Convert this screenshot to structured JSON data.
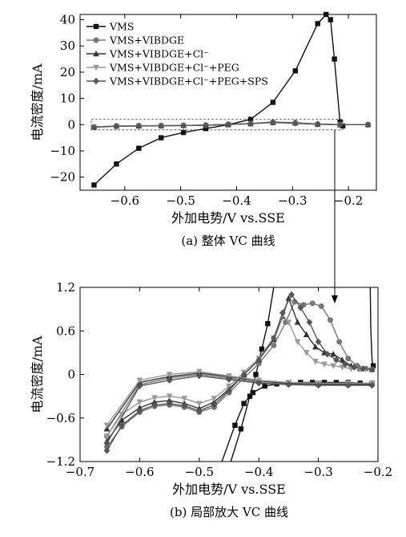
{
  "chart_data": [
    {
      "type": "line",
      "caption": "(a) 整体 VC 曲线",
      "xlabel": "外加电势/V vs.SSE",
      "ylabel": "电流密度/mA",
      "xlim": [
        -0.68,
        -0.15
      ],
      "ylim": [
        -25,
        42
      ],
      "xticks": [
        "-0.6",
        "-0.5",
        "-0.4",
        "-0.3",
        "-0.2"
      ],
      "yticks": [
        "-20",
        "-10",
        "0",
        "10",
        "20",
        "30",
        "40"
      ],
      "xtick_values": [
        -0.6,
        -0.5,
        -0.4,
        -0.3,
        -0.2
      ],
      "ytick_values": [
        -20,
        -10,
        0,
        10,
        20,
        30,
        40
      ],
      "legend_position": "top-left",
      "zoom_box": {
        "x": [
          -0.66,
          -0.21
        ],
        "y": [
          -2,
          2
        ]
      },
      "series": [
        {
          "name": "VMS",
          "marker": "square",
          "x": [
            -0.655,
            -0.615,
            -0.575,
            -0.535,
            -0.495,
            -0.455,
            -0.415,
            -0.375,
            -0.335,
            -0.295,
            -0.255,
            -0.24,
            -0.232,
            -0.225,
            -0.215,
            -0.21
          ],
          "y": [
            -23,
            -15,
            -9,
            -5,
            -3,
            -1.5,
            0,
            2,
            8.5,
            20.5,
            38.5,
            42,
            40,
            25,
            1,
            -0.5
          ]
        },
        {
          "name": "VMS+VIBDGE",
          "marker": "circle",
          "x": [
            -0.655,
            -0.615,
            -0.575,
            -0.535,
            -0.495,
            -0.455,
            -0.415,
            -0.375,
            -0.335,
            -0.295,
            -0.255,
            -0.215,
            -0.165
          ],
          "y": [
            -0.9,
            -0.6,
            -0.5,
            -0.4,
            -0.3,
            -0.2,
            0.1,
            0.3,
            0.9,
            0.8,
            0.2,
            0.0,
            0.0
          ]
        },
        {
          "name": "VMS+VIBDGE+Cl⁻",
          "marker": "triangle-up",
          "x": [
            -0.655,
            -0.615,
            -0.575,
            -0.535,
            -0.495,
            -0.455,
            -0.415,
            -0.375,
            -0.335,
            -0.295,
            -0.255,
            -0.215,
            -0.165
          ],
          "y": [
            -0.9,
            -0.5,
            -0.45,
            -0.4,
            -0.3,
            -0.2,
            0.1,
            0.4,
            0.8,
            0.6,
            0.2,
            0.0,
            0.0
          ]
        },
        {
          "name": "VMS+VIBDGE+Cl⁻+PEG",
          "marker": "triangle-down",
          "x": [
            -0.655,
            -0.615,
            -0.575,
            -0.535,
            -0.495,
            -0.455,
            -0.415,
            -0.375,
            -0.335,
            -0.295,
            -0.255,
            -0.215,
            -0.165
          ],
          "y": [
            -0.8,
            -0.5,
            -0.4,
            -0.35,
            -0.3,
            -0.2,
            0.1,
            0.4,
            0.7,
            0.4,
            0.1,
            0.0,
            0.0
          ]
        },
        {
          "name": "VMS+VIBDGE+Cl⁻+PEG+SPS",
          "marker": "diamond",
          "x": [
            -0.655,
            -0.615,
            -0.575,
            -0.535,
            -0.495,
            -0.455,
            -0.415,
            -0.375,
            -0.335,
            -0.295,
            -0.255,
            -0.215,
            -0.165
          ],
          "y": [
            -1.0,
            -0.6,
            -0.5,
            -0.45,
            -0.35,
            -0.25,
            0.1,
            0.4,
            1.0,
            0.6,
            0.2,
            0.0,
            0.0
          ]
        }
      ]
    },
    {
      "type": "line",
      "caption": "(b) 局部放大 VC 曲线",
      "xlabel": "外加电势/V vs.SSE",
      "ylabel": "电流密度/mA",
      "xlim": [
        -0.7,
        -0.2
      ],
      "ylim": [
        -1.2,
        1.2
      ],
      "xticks": [
        "-0.7",
        "-0.6",
        "-0.5",
        "-0.4",
        "-0.3",
        "-0.2"
      ],
      "yticks": [
        "-1.2",
        "-0.6",
        "0",
        "0.6",
        "1.2"
      ],
      "xtick_values": [
        -0.7,
        -0.6,
        -0.5,
        -0.4,
        -0.3,
        -0.2
      ],
      "ytick_values": [
        -1.2,
        -0.6,
        0,
        0.6,
        1.2
      ],
      "series": [
        {
          "name": "VMS",
          "marker": "square",
          "x": [
            -0.447,
            -0.43,
            -0.415,
            -0.405,
            -0.395,
            -0.385,
            -0.375
          ],
          "y": [
            -1.2,
            -0.75,
            -0.3,
            0.0,
            0.35,
            0.7,
            1.2
          ],
          "x2": [
            -0.462,
            -0.44,
            -0.425,
            -0.41,
            -0.39,
            -0.37,
            -0.35,
            -0.33,
            -0.31,
            -0.29,
            -0.27,
            -0.25,
            -0.23,
            -0.21
          ],
          "y2": [
            -1.2,
            -0.7,
            -0.4,
            -0.25,
            -0.16,
            -0.13,
            -0.12,
            -0.11,
            -0.11,
            -0.11,
            -0.11,
            -0.11,
            -0.12,
            -0.12
          ],
          "x3": [
            -0.213,
            -0.212,
            -0.21,
            -0.208
          ],
          "y3": [
            1.2,
            0.6,
            0.2,
            0.12
          ]
        },
        {
          "name": "VMS+VIBDGE",
          "marker": "circle",
          "x": [
            -0.655,
            -0.63,
            -0.6,
            -0.575,
            -0.55,
            -0.525,
            -0.5,
            -0.475,
            -0.45,
            -0.425,
            -0.4,
            -0.375,
            -0.355,
            -0.34,
            -0.325,
            -0.31,
            -0.295,
            -0.28,
            -0.265,
            -0.25,
            -0.235,
            -0.22,
            -0.21
          ],
          "y": [
            -1.0,
            -0.72,
            -0.52,
            -0.44,
            -0.42,
            -0.45,
            -0.52,
            -0.45,
            -0.25,
            -0.05,
            0.15,
            0.4,
            0.72,
            1.0,
            0.96,
            0.98,
            0.94,
            0.75,
            0.45,
            0.22,
            0.12,
            0.08,
            0.07
          ],
          "rx": [
            -0.21,
            -0.25,
            -0.3,
            -0.35,
            -0.4,
            -0.45,
            -0.5,
            -0.55,
            -0.6,
            -0.655
          ],
          "ry": [
            -0.14,
            -0.14,
            -0.14,
            -0.13,
            -0.11,
            -0.05,
            0.0,
            -0.05,
            -0.14,
            -0.85
          ]
        },
        {
          "name": "VMS+VIBDGE+Cl⁻",
          "marker": "triangle-up",
          "x": [
            -0.655,
            -0.63,
            -0.6,
            -0.575,
            -0.55,
            -0.525,
            -0.5,
            -0.475,
            -0.45,
            -0.425,
            -0.4,
            -0.375,
            -0.36,
            -0.35,
            -0.335,
            -0.32,
            -0.305,
            -0.29,
            -0.275,
            -0.26,
            -0.245,
            -0.23,
            -0.21
          ],
          "y": [
            -0.92,
            -0.63,
            -0.46,
            -0.38,
            -0.36,
            -0.4,
            -0.47,
            -0.38,
            -0.2,
            0.0,
            0.2,
            0.48,
            0.8,
            1.05,
            0.72,
            0.55,
            0.38,
            0.3,
            0.28,
            0.2,
            0.12,
            0.08,
            0.07
          ],
          "rx": [
            -0.21,
            -0.25,
            -0.3,
            -0.35,
            -0.4,
            -0.45,
            -0.5,
            -0.55,
            -0.6,
            -0.655
          ],
          "ry": [
            -0.13,
            -0.13,
            -0.13,
            -0.12,
            -0.09,
            -0.03,
            0.02,
            -0.03,
            -0.11,
            -0.75
          ]
        },
        {
          "name": "VMS+VIBDGE+Cl⁻+PEG",
          "marker": "triangle-down",
          "x": [
            -0.655,
            -0.63,
            -0.6,
            -0.575,
            -0.55,
            -0.525,
            -0.5,
            -0.475,
            -0.45,
            -0.425,
            -0.4,
            -0.375,
            -0.36,
            -0.35,
            -0.335,
            -0.32,
            -0.305,
            -0.29,
            -0.275,
            -0.26,
            -0.245,
            -0.23,
            -0.21
          ],
          "y": [
            -0.85,
            -0.55,
            -0.38,
            -0.32,
            -0.3,
            -0.33,
            -0.4,
            -0.33,
            -0.16,
            0.03,
            0.22,
            0.5,
            0.82,
            0.72,
            0.45,
            0.3,
            0.18,
            0.14,
            0.12,
            0.1,
            0.08,
            0.07,
            0.06
          ],
          "rx": [
            -0.21,
            -0.25,
            -0.3,
            -0.35,
            -0.4,
            -0.45,
            -0.5,
            -0.55,
            -0.6,
            -0.655
          ],
          "ry": [
            -0.12,
            -0.12,
            -0.12,
            -0.11,
            -0.08,
            -0.02,
            0.04,
            0.0,
            -0.08,
            -0.7
          ]
        },
        {
          "name": "VMS+VIBDGE+Cl⁻+PEG+SPS",
          "marker": "diamond",
          "x": [
            -0.655,
            -0.63,
            -0.6,
            -0.575,
            -0.55,
            -0.525,
            -0.5,
            -0.475,
            -0.45,
            -0.425,
            -0.4,
            -0.375,
            -0.36,
            -0.345,
            -0.33,
            -0.315,
            -0.3,
            -0.285,
            -0.27,
            -0.255,
            -0.24,
            -0.225,
            -0.21
          ],
          "y": [
            -1.05,
            -0.7,
            -0.5,
            -0.42,
            -0.4,
            -0.43,
            -0.5,
            -0.42,
            -0.22,
            0.0,
            0.2,
            0.5,
            0.85,
            1.1,
            0.92,
            0.72,
            0.45,
            0.28,
            0.2,
            0.14,
            0.1,
            0.08,
            0.07
          ],
          "rx": [
            -0.21,
            -0.25,
            -0.3,
            -0.35,
            -0.4,
            -0.45,
            -0.5,
            -0.55,
            -0.6,
            -0.655
          ],
          "ry": [
            -0.15,
            -0.15,
            -0.15,
            -0.14,
            -0.12,
            -0.07,
            -0.02,
            -0.08,
            -0.16,
            -0.95
          ]
        }
      ]
    }
  ],
  "colors": {
    "VMS": "#111111",
    "VMS+VIBDGE": "#777777",
    "VMS+VIBDGE+Cl⁻": "#333333",
    "VMS+VIBDGE+Cl⁻+PEG": "#999999",
    "VMS+VIBDGE+Cl⁻+PEG+SPS": "#555555"
  }
}
